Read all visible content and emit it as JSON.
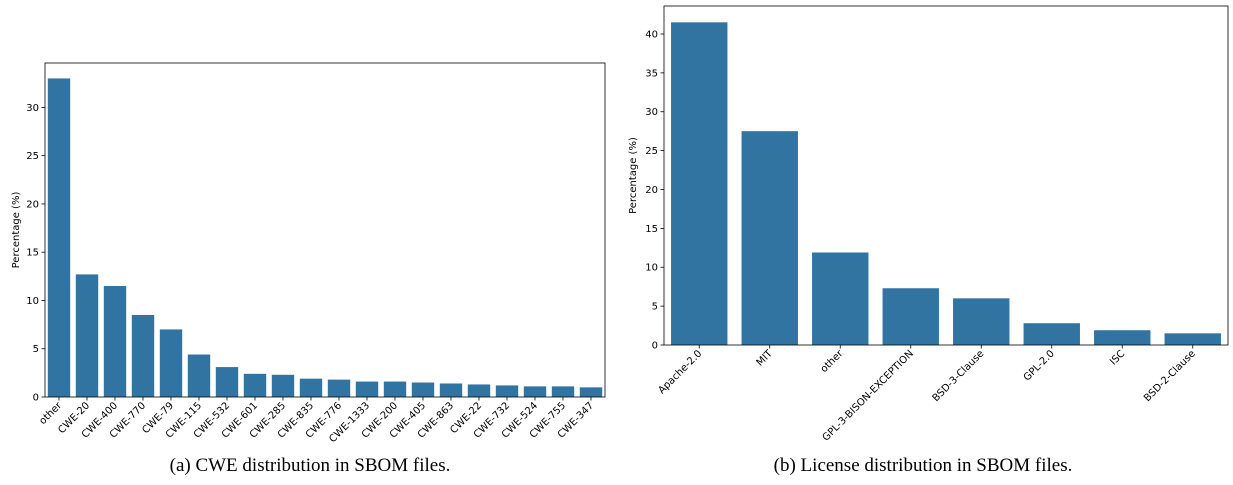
{
  "figure": {
    "captions": [
      "(a) CWE distribution in SBOM files.",
      "(b) License distribution in SBOM files."
    ]
  },
  "chart_data": [
    {
      "type": "bar",
      "categories": [
        "other",
        "CWE-20",
        "CWE-400",
        "CWE-770",
        "CWE-79",
        "CWE-115",
        "CWE-532",
        "CWE-601",
        "CWE-285",
        "CWE-835",
        "CWE-776",
        "CWE-1333",
        "CWE-200",
        "CWE-405",
        "CWE-863",
        "CWE-22",
        "CWE-732",
        "CWE-524",
        "CWE-755",
        "CWE-347"
      ],
      "values": [
        33.0,
        12.7,
        11.5,
        8.5,
        7.0,
        4.4,
        3.1,
        2.4,
        2.3,
        1.9,
        1.8,
        1.6,
        1.6,
        1.5,
        1.4,
        1.3,
        1.2,
        1.1,
        1.1,
        1.0
      ],
      "title": "",
      "xlabel": "",
      "ylabel": "Percentage (%)",
      "ylim": [
        0,
        34.6
      ],
      "yticks": [
        0,
        5,
        10,
        15,
        20,
        25,
        30
      ],
      "color": "#3274a1",
      "grid": false
    },
    {
      "type": "bar",
      "categories": [
        "Apache-2.0",
        "MIT",
        "other",
        "GPL-3-BISON-EXCEPTION",
        "BSD-3-Clause",
        "GPL-2.0",
        "ISC",
        "BSD-2-Clause"
      ],
      "values": [
        41.5,
        27.5,
        11.9,
        7.3,
        6.0,
        2.8,
        1.9,
        1.5
      ],
      "title": "",
      "xlabel": "",
      "ylabel": "Percentage (%)",
      "ylim": [
        0,
        43.6
      ],
      "yticks": [
        0,
        5,
        10,
        15,
        20,
        25,
        30,
        35,
        40
      ],
      "color": "#3274a1",
      "grid": false
    }
  ]
}
